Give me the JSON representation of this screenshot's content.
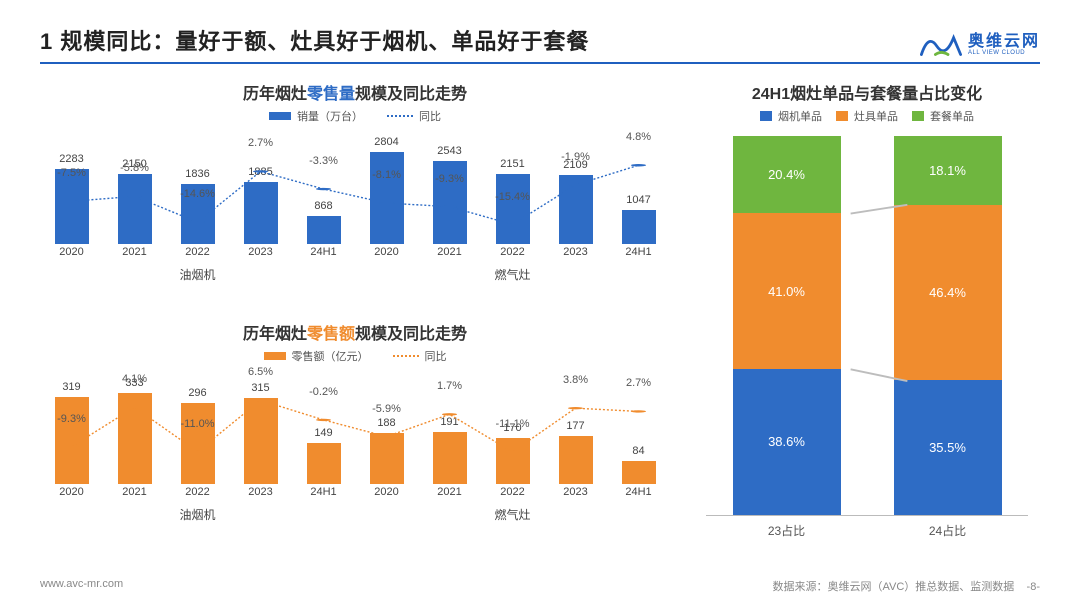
{
  "header": {
    "title": "1 规模同比：量好于额、灶具好于烟机、单品好于套餐",
    "logo": {
      "cn": "奥维云网",
      "en": "ALL VIEW CLOUD"
    }
  },
  "palette": {
    "blue_bar": "#2e6cc5",
    "blue_line": "#2e6cc5",
    "orange_bar": "#f08c2e",
    "orange_line": "#f08c2e",
    "stack_blue": "#2e6cc5",
    "stack_orange": "#f08c2e",
    "stack_green": "#6fb63f",
    "grey_connector": "#bdbdbd",
    "text_grey": "#555555"
  },
  "chart1": {
    "type": "bar+line",
    "title_parts": [
      "历年烟灶",
      "零售量",
      "规模及同比走势"
    ],
    "highlight_color": "#2e6cc5",
    "legend_bar": "销量（万台）",
    "legend_line": "同比",
    "categories": [
      "2020",
      "2021",
      "2022",
      "2023",
      "24H1",
      "2020",
      "2021",
      "2022",
      "2023",
      "24H1"
    ],
    "group_labels": [
      "油烟机",
      "燃气灶"
    ],
    "values": [
      2283,
      2150,
      1836,
      1885,
      868,
      2804,
      2543,
      2151,
      2109,
      1047
    ],
    "line_pct": [
      -7.5,
      -5.8,
      -14.6,
      2.7,
      -3.3,
      -8.1,
      -9.3,
      -15.4,
      -1.9,
      4.8
    ],
    "y_max": 3000,
    "bar_color": "#2e6cc5",
    "line_color": "#2e6cc5"
  },
  "chart2": {
    "type": "bar+line",
    "title_parts": [
      "历年烟灶",
      "零售额",
      "规模及同比走势"
    ],
    "highlight_color": "#f08c2e",
    "legend_bar": "零售额（亿元）",
    "legend_line": "同比",
    "categories": [
      "2020",
      "2021",
      "2022",
      "2023",
      "24H1",
      "2020",
      "2021",
      "2022",
      "2023",
      "24H1"
    ],
    "group_labels": [
      "油烟机",
      "燃气灶"
    ],
    "values": [
      319,
      333,
      296,
      315,
      149,
      188,
      191,
      170,
      177,
      84
    ],
    "line_pct": [
      -9.3,
      4.1,
      -11.0,
      6.5,
      -0.2,
      -5.9,
      1.7,
      -11.1,
      3.8,
      2.7
    ],
    "y_max": 360,
    "bar_color": "#f08c2e",
    "line_color": "#f08c2e"
  },
  "chart3": {
    "type": "stacked-bar",
    "title": "24H1烟灶单品与套餐量占比变化",
    "legend": [
      "烟机单品",
      "灶具单品",
      "套餐单品"
    ],
    "colors": [
      "#2e6cc5",
      "#f08c2e",
      "#6fb63f"
    ],
    "categories": [
      "23占比",
      "24占比"
    ],
    "series": [
      {
        "blue": 38.6,
        "orange": 41.0,
        "green": 20.4
      },
      {
        "blue": 35.5,
        "orange": 46.4,
        "green": 18.1
      }
    ]
  },
  "footer": {
    "url": "www.avc-mr.com",
    "source": "数据来源：奥维云网（AVC）推总数据、监测数据",
    "page": "-8-"
  }
}
